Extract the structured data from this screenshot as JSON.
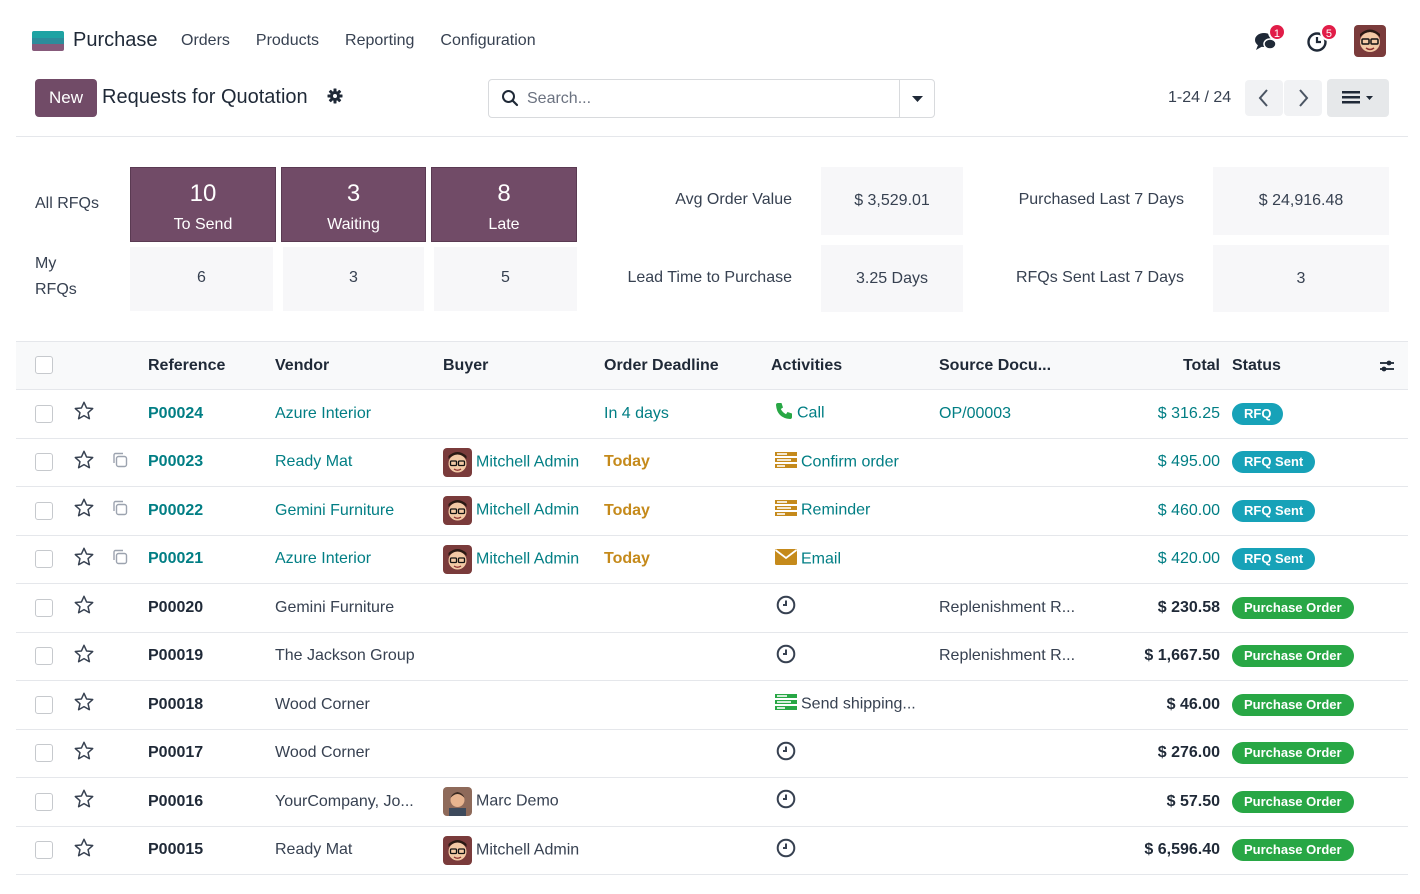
{
  "navbar": {
    "app_name": "Purchase",
    "menu": [
      "Orders",
      "Products",
      "Reporting",
      "Configuration"
    ],
    "messages_badge": "1",
    "activities_badge": "5"
  },
  "control_panel": {
    "new_label": "New",
    "title": "Requests for Quotation",
    "search_placeholder": "Search...",
    "pager": "1-24 / 24"
  },
  "dashboard": {
    "all_rfqs_label": "All RFQs",
    "my_rfqs_label_1": "My",
    "my_rfqs_label_2": "RFQs",
    "all": [
      {
        "count": "10",
        "label": "To Send"
      },
      {
        "count": "3",
        "label": "Waiting"
      },
      {
        "count": "8",
        "label": "Late"
      }
    ],
    "mine": [
      "6",
      "3",
      "5"
    ],
    "kpis": [
      {
        "label": "Avg Order Value",
        "value": "$ 3,529.01"
      },
      {
        "label": "Purchased Last 7 Days",
        "value": "$ 24,916.48"
      },
      {
        "label": "Lead Time to Purchase",
        "value": "3.25 Days"
      },
      {
        "label": "RFQs Sent Last 7 Days",
        "value": "3"
      }
    ]
  },
  "table": {
    "headers": {
      "reference": "Reference",
      "vendor": "Vendor",
      "buyer": "Buyer",
      "deadline": "Order Deadline",
      "activities": "Activities",
      "source": "Source Docu...",
      "total": "Total",
      "status": "Status"
    },
    "rows": [
      {
        "ref": "P00024",
        "vendor": "Azure Interior",
        "buyer": "",
        "deadline": "In 4 days",
        "activity": "Call",
        "activity_icon": "phone-icon",
        "source": "OP/00003",
        "total": "$ 316.25",
        "status": "RFQ"
      },
      {
        "ref": "P00023",
        "vendor": "Ready Mat",
        "buyer": "Mitchell Admin",
        "deadline": "Today",
        "activity": "Confirm order",
        "activity_icon": "list-icon",
        "source": "",
        "total": "$ 495.00",
        "status": "RFQ Sent"
      },
      {
        "ref": "P00022",
        "vendor": "Gemini Furniture",
        "buyer": "Mitchell Admin",
        "deadline": "Today",
        "activity": "Reminder",
        "activity_icon": "list-icon",
        "source": "",
        "total": "$ 460.00",
        "status": "RFQ Sent"
      },
      {
        "ref": "P00021",
        "vendor": "Azure Interior",
        "buyer": "Mitchell Admin",
        "deadline": "Today",
        "activity": "Email",
        "activity_icon": "envelope-icon",
        "source": "",
        "total": "$ 420.00",
        "status": "RFQ Sent"
      },
      {
        "ref": "P00020",
        "vendor": "Gemini Furniture",
        "buyer": "",
        "deadline": "",
        "activity": "",
        "activity_icon": "clock-icon",
        "source": "Replenishment R...",
        "total": "$ 230.58",
        "status": "Purchase Order"
      },
      {
        "ref": "P00019",
        "vendor": "The Jackson Group",
        "buyer": "",
        "deadline": "",
        "activity": "",
        "activity_icon": "clock-icon",
        "source": "Replenishment R...",
        "total": "$ 1,667.50",
        "status": "Purchase Order"
      },
      {
        "ref": "P00018",
        "vendor": "Wood Corner",
        "buyer": "",
        "deadline": "",
        "activity": "Send shipping...",
        "activity_icon": "list-icon",
        "source": "",
        "total": "$ 46.00",
        "status": "Purchase Order"
      },
      {
        "ref": "P00017",
        "vendor": "Wood Corner",
        "buyer": "",
        "deadline": "",
        "activity": "",
        "activity_icon": "clock-icon",
        "source": "",
        "total": "$ 276.00",
        "status": "Purchase Order"
      },
      {
        "ref": "P00016",
        "vendor": "YourCompany, Jo...",
        "buyer": "Marc Demo",
        "deadline": "",
        "activity": "",
        "activity_icon": "clock-icon",
        "source": "",
        "total": "$ 57.50",
        "status": "Purchase Order"
      },
      {
        "ref": "P00015",
        "vendor": "Ready Mat",
        "buyer": "Mitchell Admin",
        "deadline": "",
        "activity": "",
        "activity_icon": "clock-icon",
        "source": "",
        "total": "$ 6,596.40",
        "status": "Purchase Order"
      }
    ]
  },
  "colors": {
    "brand": "#714b67",
    "link": "#017e84",
    "rfq_badge": "#17a2b8",
    "po_badge": "#28a745",
    "warning": "#c58a1b"
  }
}
